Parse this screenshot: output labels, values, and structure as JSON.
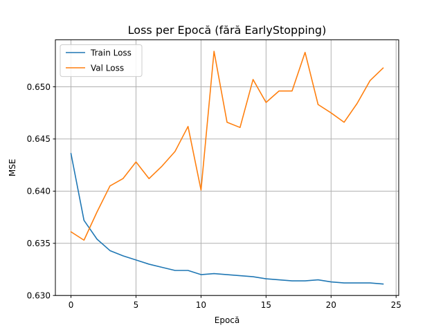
{
  "chart_data": {
    "type": "line",
    "title": "Loss per Epocă (fără EarlyStopping)",
    "xlabel": "Epocă",
    "ylabel": "MSE",
    "xlim": [
      -1.2,
      25.2
    ],
    "ylim": [
      0.63,
      0.6545
    ],
    "xticks": [
      0,
      5,
      10,
      15,
      20,
      25
    ],
    "yticks": [
      0.63,
      0.635,
      0.64,
      0.645,
      0.65
    ],
    "grid": true,
    "legend_position": "top-left",
    "x": [
      0,
      1,
      2,
      3,
      4,
      5,
      6,
      7,
      8,
      9,
      10,
      11,
      12,
      13,
      14,
      15,
      16,
      17,
      18,
      19,
      20,
      21,
      22,
      23,
      24
    ],
    "series": [
      {
        "name": "Train Loss",
        "color": "#1f77b4",
        "values": [
          0.6436,
          0.6372,
          0.6354,
          0.6343,
          0.6338,
          0.6334,
          0.633,
          0.6327,
          0.6324,
          0.6324,
          0.632,
          0.6321,
          0.632,
          0.6319,
          0.6318,
          0.6316,
          0.6315,
          0.6314,
          0.6314,
          0.6315,
          0.6313,
          0.6312,
          0.6312,
          0.6312,
          0.6311
        ]
      },
      {
        "name": "Val Loss",
        "color": "#ff7f0e",
        "values": [
          0.6361,
          0.6353,
          0.638,
          0.6405,
          0.6412,
          0.6428,
          0.6412,
          0.6424,
          0.6438,
          0.6462,
          0.6401,
          0.6534,
          0.6466,
          0.6461,
          0.6507,
          0.6485,
          0.6496,
          0.6496,
          0.6533,
          0.6483,
          0.6475,
          0.6466,
          0.6484,
          0.6506,
          0.6518
        ]
      }
    ]
  }
}
